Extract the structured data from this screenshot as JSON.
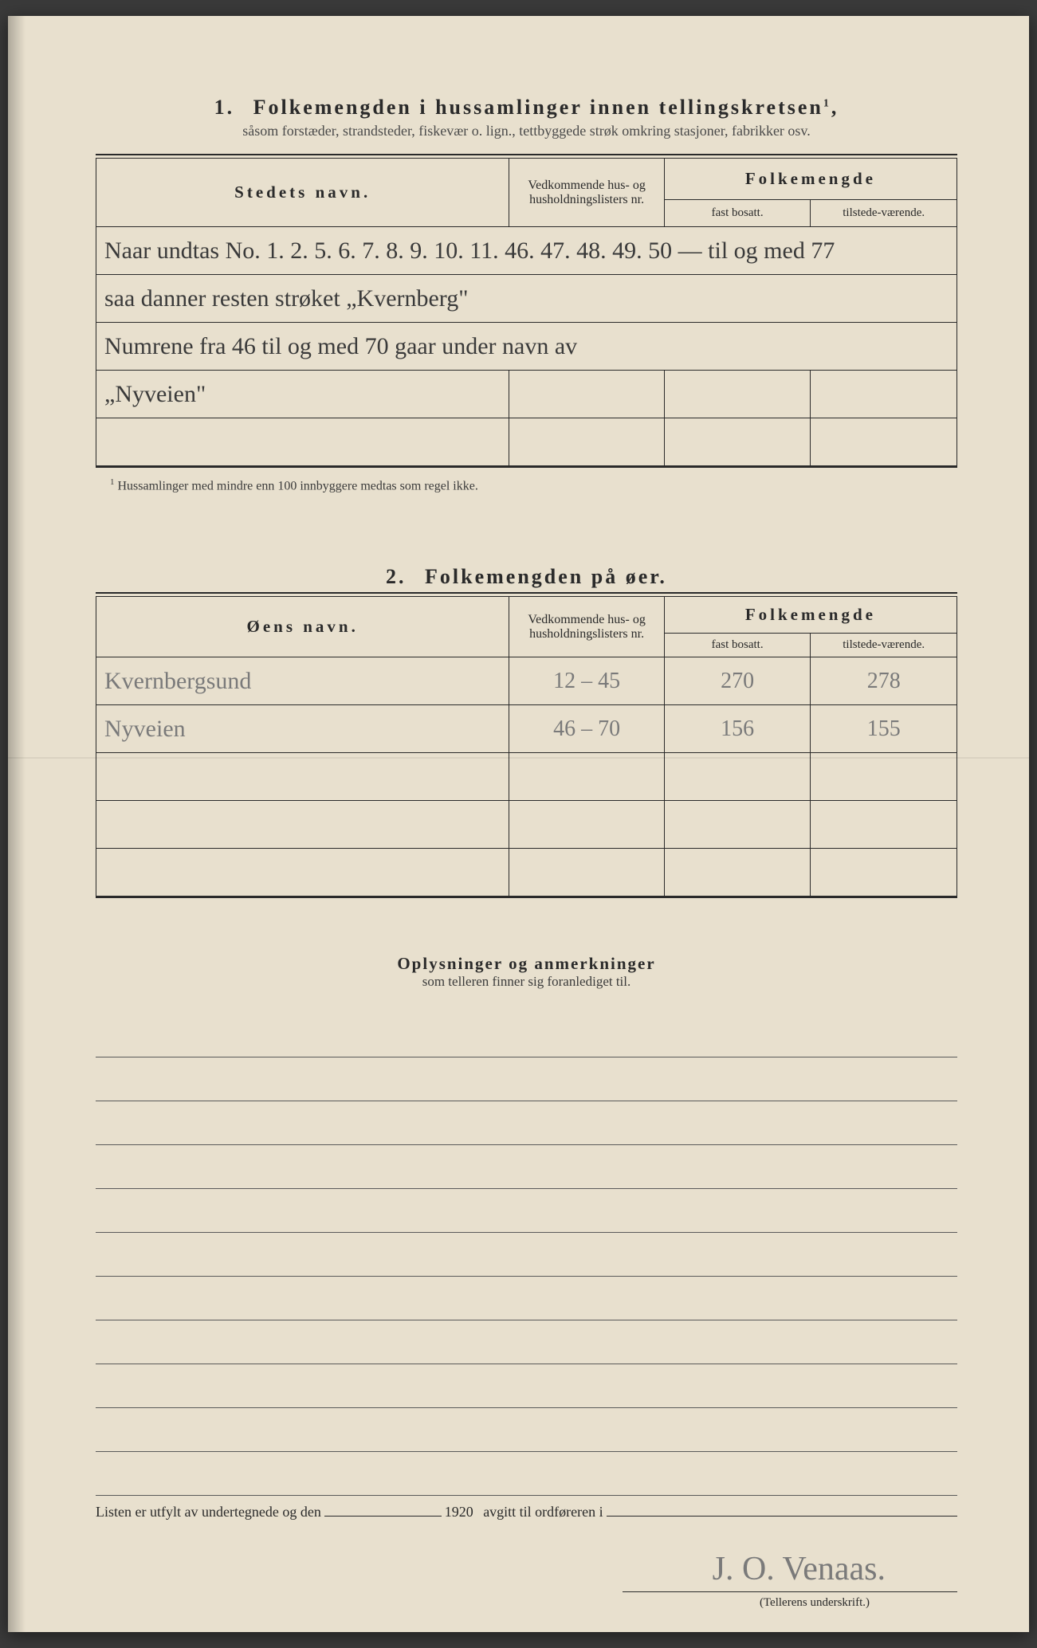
{
  "section1": {
    "number": "1.",
    "title": "Folkemengden i hussamlinger innen tellingskretsen",
    "title_sup": "1",
    "suffix": ",",
    "subtitle": "såsom forstæder, strandsteder, fiskevær o. lign., tettbyggede strøk omkring stasjoner, fabrikker osv.",
    "headers": {
      "name": "Stedets navn.",
      "lists": "Vedkommende hus- og husholdningslisters nr.",
      "pop": "Folkemengde",
      "fast": "fast bosatt.",
      "tilstede": "tilstede-værende."
    },
    "rows": [
      "Naar undtas No. 1. 2. 5. 6. 7. 8. 9. 10. 11. 46. 47. 48. 49. 50 — til og med 77",
      "saa danner resten strøket „Kvernberg\"",
      "Numrene fra 46 til og med 70 gaar under navn av",
      "„Nyveien\""
    ],
    "footnote_marker": "1",
    "footnote": "Hussamlinger med mindre enn 100 innbyggere medtas som regel ikke."
  },
  "section2": {
    "number": "2.",
    "title": "Folkemengden på øer.",
    "headers": {
      "name": "Øens navn.",
      "lists": "Vedkommende hus- og husholdningslisters nr.",
      "pop": "Folkemengde",
      "fast": "fast bosatt.",
      "tilstede": "tilstede-værende."
    },
    "rows": [
      {
        "name": "Kvernbergsund",
        "lists": "12 – 45",
        "fast": "270",
        "tilstede": "278"
      },
      {
        "name": "Nyveien",
        "lists": "46 – 70",
        "fast": "156",
        "tilstede": "155"
      }
    ],
    "empty_rows": 3
  },
  "remarks": {
    "title": "Oplysninger og anmerkninger",
    "subtitle": "som telleren finner sig foranlediget til.",
    "line_count": 11
  },
  "bottom": {
    "text_a": "Listen er utfylt av undertegnede og den",
    "year": "1920",
    "text_b": "avgitt til ordføreren i"
  },
  "signature": {
    "text": "J. O. Venaas.",
    "label": "(Tellerens underskrift.)"
  },
  "colors": {
    "paper": "#e8e0ce",
    "ink": "#2a2a2a",
    "pencil": "#7a7a7a"
  }
}
